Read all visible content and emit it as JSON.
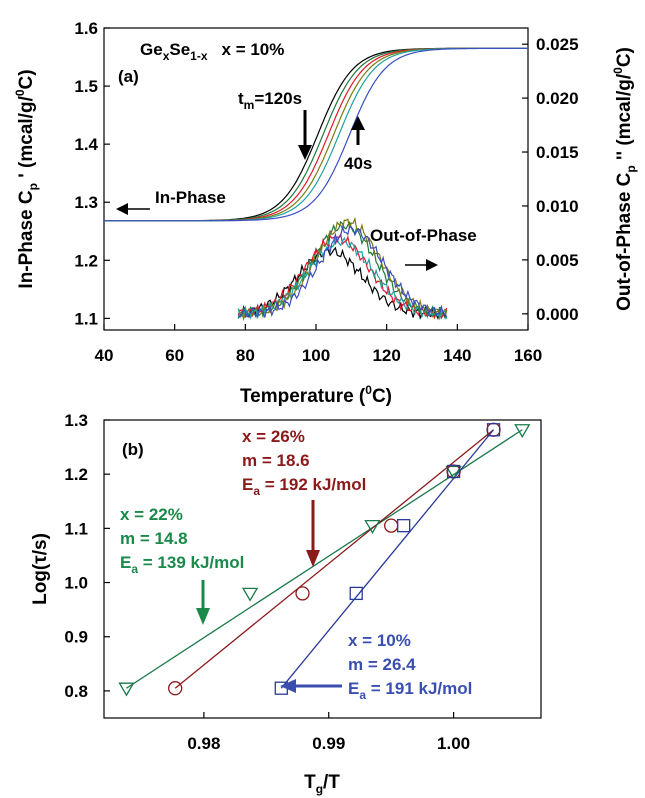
{
  "chart_data": [
    {
      "panel_label": "(a)",
      "type": "line",
      "title": "GexSe1-x  x = 10%",
      "title_parts": {
        "base1": "Ge",
        "sub1": "x",
        "base2": "Se",
        "sub2": "1-x",
        "rest": "x = 10%"
      },
      "xlabel": "Temperature (0C)",
      "xlabel_parts": {
        "pre": "Temperature (",
        "sup": "0",
        "post": "C)"
      },
      "ylabel": "In-Phase Cp ' (mcal/g/0C)",
      "ylabel_parts": {
        "pre": "In-Phase C",
        "sub": "p",
        "mid": " ' (mcal/g/",
        "sup": "0",
        "post": "C)"
      },
      "y2label": "Out-of-Phase Cp '' (mcal/g/0C)",
      "y2label_parts": {
        "pre": "Out-of-Phase C",
        "sub": "p",
        "mid": " '' (mcal/g/",
        "sup": "0",
        "post": "C)"
      },
      "xlim": [
        40,
        160
      ],
      "ylim": [
        1.08,
        1.6
      ],
      "y2lim": [
        -0.0015,
        0.0265
      ],
      "xticks": [
        "40",
        "60",
        "80",
        "100",
        "120",
        "140",
        "160"
      ],
      "yticks": [
        "1.1",
        "1.2",
        "1.3",
        "1.4",
        "1.5",
        "1.6"
      ],
      "y2ticks": [
        "0.000",
        "0.005",
        "0.010",
        "0.015",
        "0.020",
        "0.025"
      ],
      "grid": false,
      "series_colors": [
        "#000000",
        "#1a7a3a",
        "#e0182c",
        "#7a7a10",
        "#20a0a0",
        "#3a4ec0"
      ],
      "in_phase": {
        "axis": "left",
        "midpoints": [
          100.5,
          102.0,
          103.5,
          105.0,
          106.5,
          109.5
        ],
        "low": 1.268,
        "high": 1.565,
        "x_range": [
          40,
          160
        ]
      },
      "out_of_phase": {
        "axis": "right",
        "peaks": [
          {
            "x": 104,
            "y": 0.0058,
            "width": 9
          },
          {
            "x": 108,
            "y": 0.0082,
            "width": 9
          },
          {
            "x": 106,
            "y": 0.007,
            "width": 9
          },
          {
            "x": 109,
            "y": 0.0085,
            "width": 9
          },
          {
            "x": 107,
            "y": 0.0067,
            "width": 9
          },
          {
            "x": 110,
            "y": 0.0078,
            "width": 9
          }
        ],
        "x_range": [
          78,
          137
        ]
      },
      "annotations": [
        {
          "key": "tm",
          "text_parts": {
            "base": "t",
            "sub": "m",
            "rest": "=120s"
          },
          "text": "tm=120s",
          "x": 96,
          "y": 1.49
        },
        {
          "key": "40s",
          "text": "40s",
          "x": 113,
          "y": 1.355
        },
        {
          "key": "in_phase",
          "text": "In-Phase",
          "x": 60,
          "y": 1.29
        },
        {
          "key": "out_phase",
          "text": "Out-of-Phase",
          "x": 118,
          "y": 1.225
        }
      ]
    },
    {
      "panel_label": "(b)",
      "type": "scatter",
      "xlabel": "Tg/T",
      "xlabel_parts": {
        "base": "T",
        "sub": "g",
        "rest": "/T"
      },
      "ylabel": "Log(τ/s)",
      "xlim": [
        0.972,
        1.007
      ],
      "ylim": [
        0.75,
        1.3
      ],
      "xticks": [
        {
          "v": 0.98,
          "label": "0.98"
        },
        {
          "v": 0.99,
          "label": "0.99"
        },
        {
          "v": 1.0,
          "label": "1.00"
        }
      ],
      "yticks": [
        "0.8",
        "0.9",
        "1.0",
        "1.1",
        "1.2",
        "1.3"
      ],
      "grid": false,
      "series": [
        {
          "marker": "triangle",
          "color": "#1a7a4a",
          "x": [
            0.9738,
            0.9837,
            0.9935,
            1.0,
            1.0055
          ],
          "y": [
            0.805,
            0.98,
            1.105,
            1.205,
            1.282
          ],
          "fit": [
            [
              0.9738,
              0.805
            ],
            [
              1.0055,
              1.282
            ]
          ],
          "label_lines": [
            "x = 22%",
            "m = 14.8"
          ],
          "ea_parts": {
            "base": "E",
            "sub": "a",
            "rest": " = 139 kJ/mol"
          }
        },
        {
          "marker": "circle",
          "color": "#8b1a1a",
          "x": [
            0.9777,
            0.9879,
            0.995,
            1.0,
            1.0032
          ],
          "y": [
            0.805,
            0.98,
            1.105,
            1.205,
            1.282
          ],
          "fit": [
            [
              0.9777,
              0.805
            ],
            [
              1.0032,
              1.282
            ]
          ],
          "label_lines": [
            "x = 26%",
            "m = 18.6"
          ],
          "ea_parts": {
            "base": "E",
            "sub": "a",
            "rest": " = 192 kJ/mol"
          }
        },
        {
          "marker": "square",
          "color": "#2a3a9a",
          "x": [
            0.9862,
            0.9922,
            0.996,
            1.0,
            1.0032
          ],
          "y": [
            0.805,
            0.98,
            1.105,
            1.205,
            1.282
          ],
          "fit": [
            [
              0.9862,
              0.805
            ],
            [
              1.0032,
              1.282
            ]
          ],
          "label_lines": [
            "x = 10%",
            "m = 26.4"
          ],
          "ea_parts": {
            "base": "E",
            "sub": "a",
            "rest": " = 191 kJ/mol"
          }
        }
      ]
    }
  ]
}
